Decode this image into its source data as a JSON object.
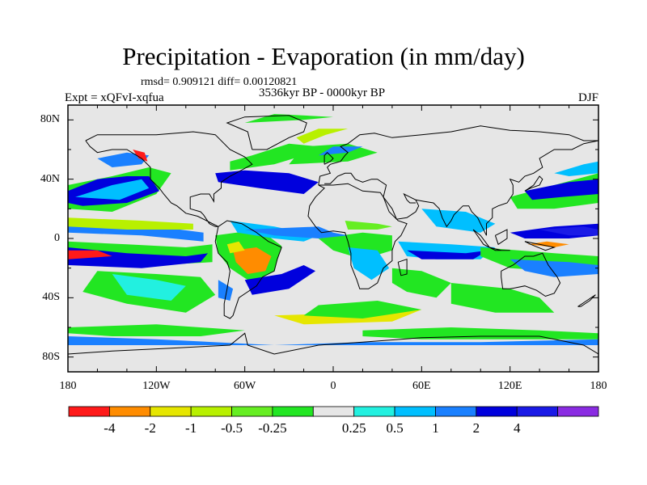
{
  "header": {
    "title": "Precipitation - Evaporation (in mm/day)",
    "stats": "rmsd= 0.909121 diff= 0.00120821",
    "experiment": "Expt = xQFvI-xqfua",
    "period": "3536kyr BP - 0000kyr BP",
    "season": "DJF"
  },
  "chart_data": {
    "type": "heatmap",
    "xlim": [
      -180,
      180
    ],
    "ylim": [
      -90,
      90
    ],
    "x_tick_labels": [
      "180",
      "120W",
      "60W",
      "0",
      "60E",
      "120E",
      "180"
    ],
    "y_tick_labels": [
      "80N",
      "40N",
      "0",
      "40S",
      "80S"
    ],
    "colorbar": {
      "tick_labels": [
        "-4",
        "-2",
        "-1",
        "-0.5",
        "-0.25",
        "0.25",
        "0.5",
        "1",
        "2",
        "4"
      ],
      "colors": [
        "#ff1a1a",
        "#ff8c00",
        "#e6e600",
        "#b8f000",
        "#66ee22",
        "#22e622",
        "#e6e6e6",
        "#22f0e0",
        "#00bfff",
        "#1a80ff",
        "#0000dd",
        "#1a1ae6",
        "#8a2be2"
      ]
    }
  }
}
